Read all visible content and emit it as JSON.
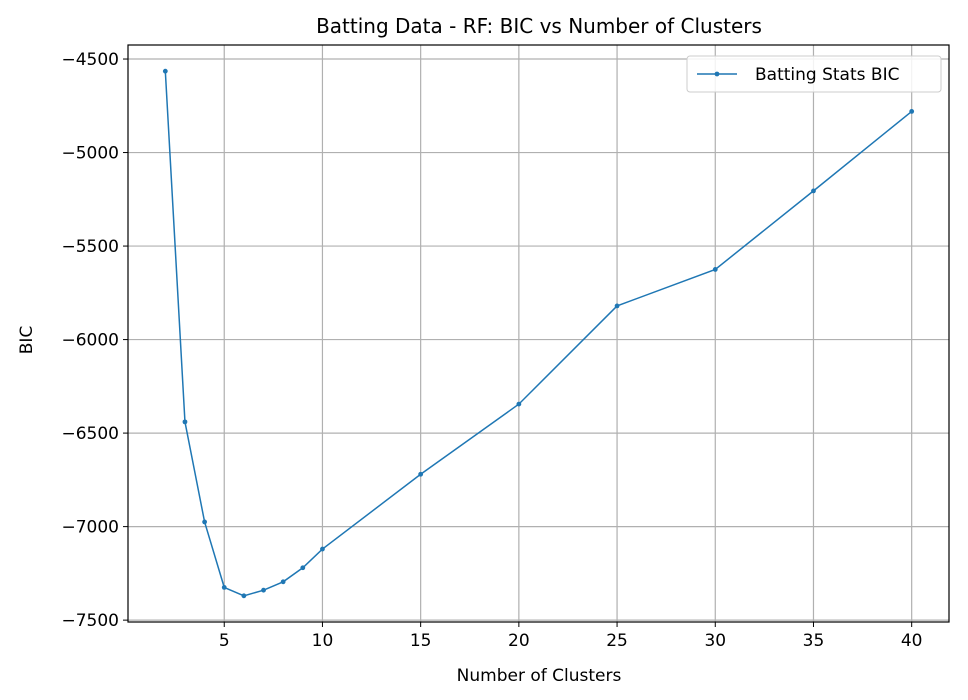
{
  "chart_data": {
    "type": "line",
    "title": "Batting Data - RF: BIC vs Number of Clusters",
    "xlabel": "Number of Clusters",
    "ylabel": "BIC",
    "xlim": [
      0.1,
      41.9
    ],
    "ylim": [
      -7510,
      -4425
    ],
    "xticks": [
      5,
      10,
      15,
      20,
      25,
      30,
      35,
      40
    ],
    "yticks": [
      -4500,
      -5000,
      -5500,
      -6000,
      -6500,
      -7000,
      -7500
    ],
    "grid": true,
    "legend_position": "top-right",
    "series": [
      {
        "name": "Batting Stats BIC",
        "color": "#1f77b4",
        "x": [
          2,
          3,
          4,
          5,
          6,
          7,
          8,
          9,
          10,
          15,
          20,
          25,
          30,
          35,
          40
        ],
        "y": [
          -4565,
          -6440,
          -6975,
          -7325,
          -7370,
          -7340,
          -7295,
          -7220,
          -7120,
          -6720,
          -6345,
          -5820,
          -5625,
          -5205,
          -4780
        ]
      }
    ]
  }
}
